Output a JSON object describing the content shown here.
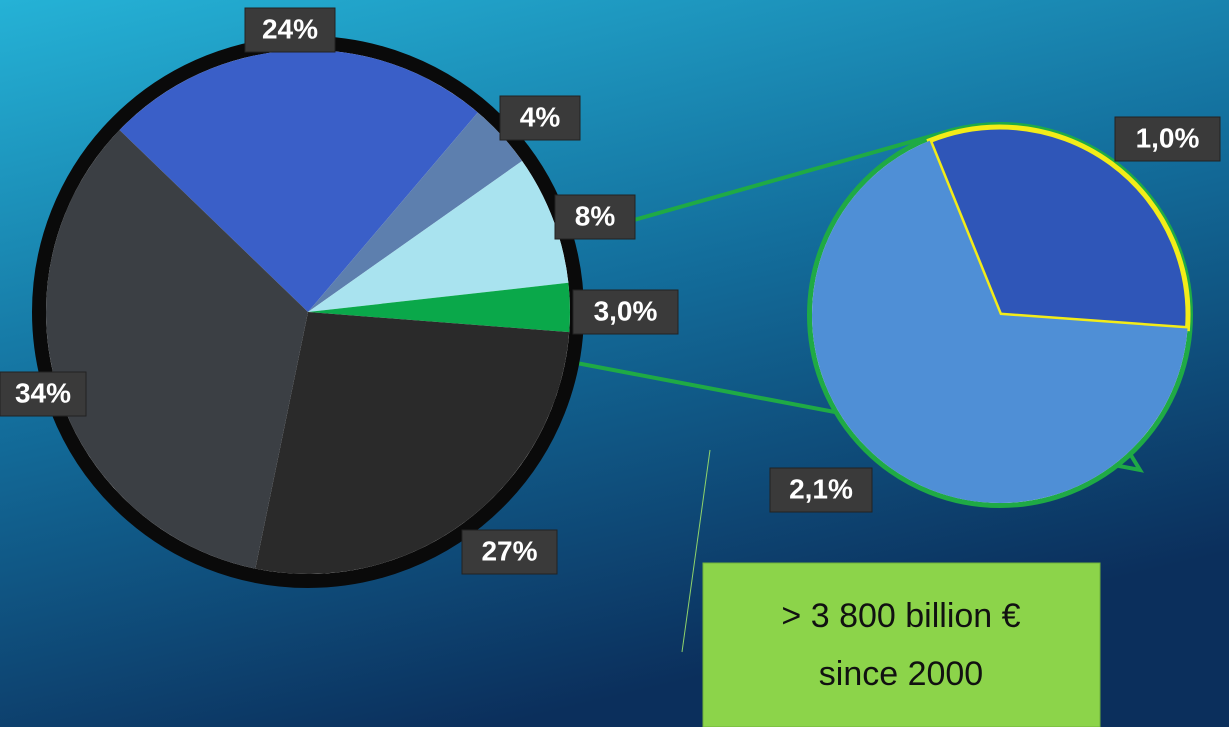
{
  "chart_data": [
    {
      "type": "pie",
      "values": [
        24,
        4,
        8,
        3,
        27,
        34
      ],
      "value_labels": [
        "24%",
        "4%",
        "8%",
        "3,0%",
        "27%",
        "34%"
      ],
      "colors": [
        "#3a5fc8",
        "#5d7fae",
        "#a9e3ef",
        "#0aa84a",
        "#2a2a2a",
        "#3b3f44"
      ],
      "annotations": [
        "> 3 800 billion €",
        "since 2000"
      ]
    },
    {
      "type": "pie",
      "values": [
        1.0,
        2.1
      ],
      "value_labels": [
        "1,0%",
        "2,1%"
      ],
      "colors": [
        "#2f56b8",
        "#4f8fd6"
      ]
    }
  ]
}
